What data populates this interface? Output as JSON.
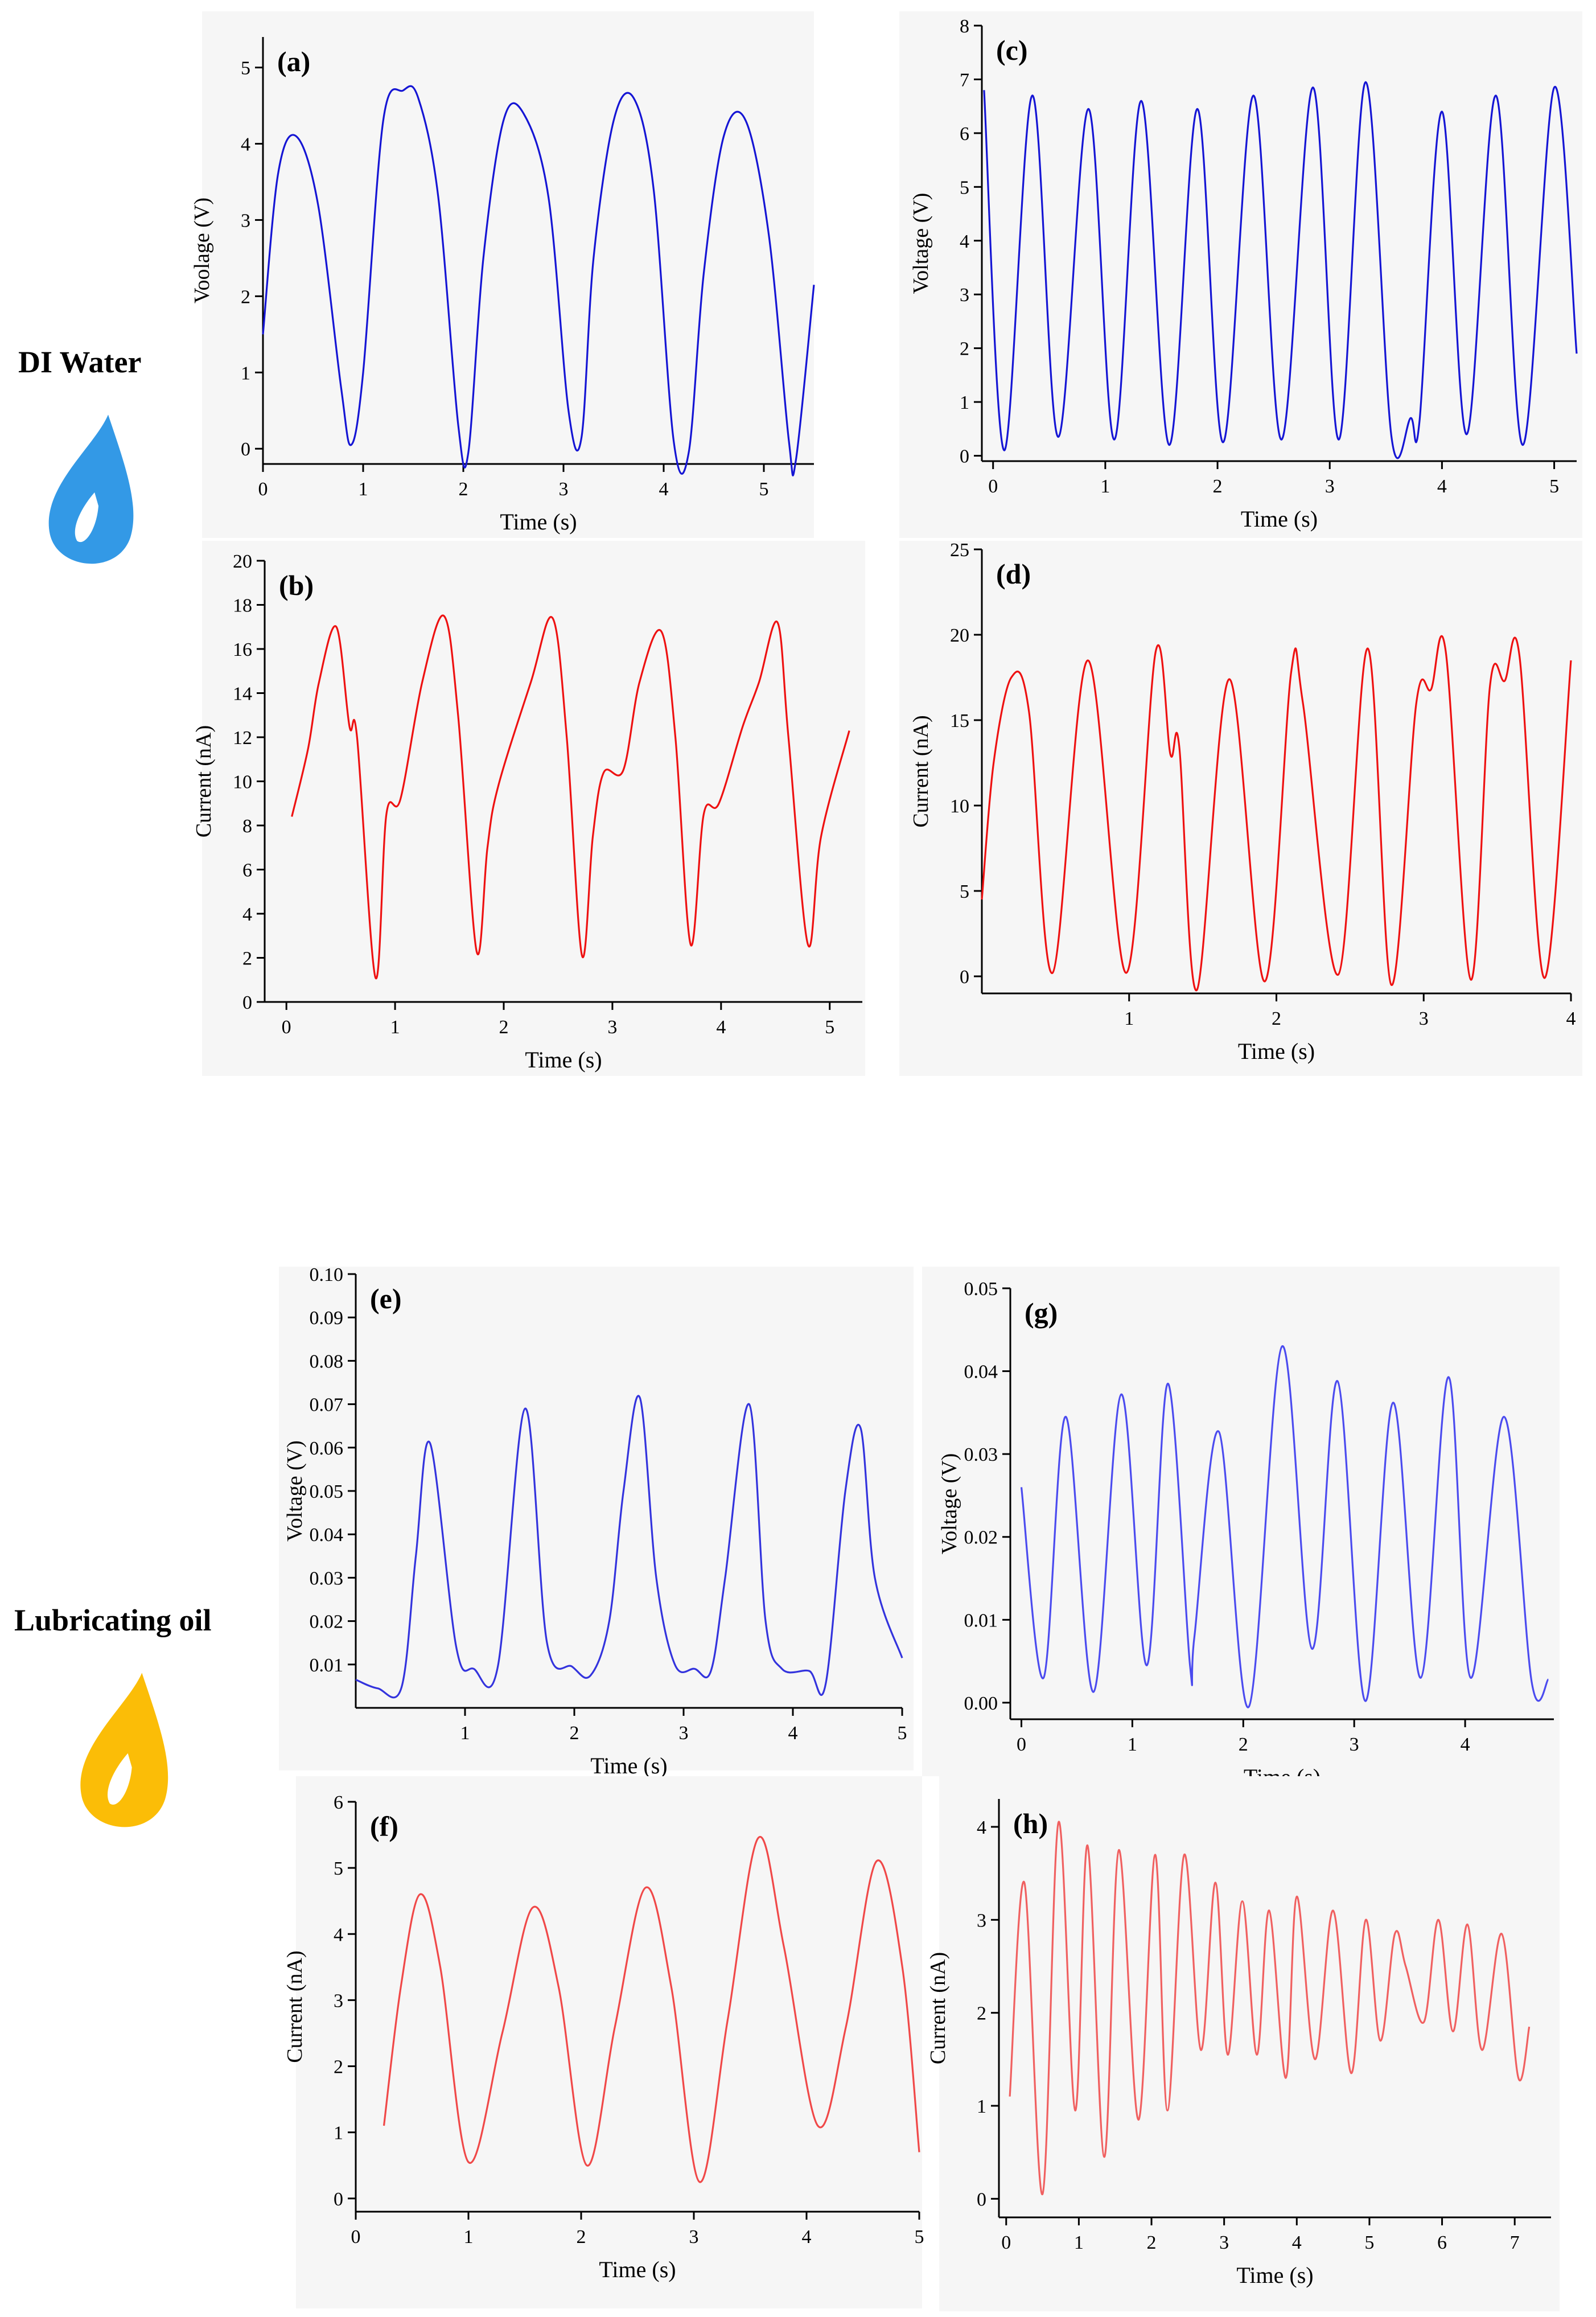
{
  "groups": {
    "di_water": {
      "label": "DI Water",
      "drop_color": "#3399e6"
    },
    "lubricating_oil": {
      "label": "Lubricating oil",
      "drop_color": "#fbbd07"
    }
  },
  "chart_data": [
    {
      "id": "a",
      "panel_label": "(a)",
      "type": "line",
      "color": "#1515d4",
      "xlabel": "Time (s)",
      "ylabel": "Voolage (V)",
      "xlim": [
        0,
        5.5
      ],
      "ylim": [
        -0.2,
        5.4
      ],
      "xticks": [
        0,
        1,
        2,
        3,
        4,
        5
      ],
      "yticks": [
        0,
        1,
        2,
        3,
        4,
        5
      ],
      "x": [
        0,
        0.15,
        0.33,
        0.55,
        0.78,
        0.88,
        1.0,
        1.2,
        1.4,
        1.55,
        1.75,
        1.95,
        2.05,
        2.2,
        2.4,
        2.6,
        2.85,
        3.05,
        3.18,
        3.3,
        3.5,
        3.7,
        3.9,
        4.1,
        4.25,
        4.4,
        4.6,
        4.82,
        5.05,
        5.25,
        5.32,
        5.5
      ],
      "y": [
        1.5,
        3.6,
        4.1,
        3.2,
        0.8,
        0.05,
        1.0,
        4.3,
        4.7,
        4.6,
        3.3,
        0.3,
        -0.05,
        2.5,
        4.3,
        4.4,
        3.3,
        0.5,
        0.15,
        2.5,
        4.3,
        4.6,
        3.4,
        0.1,
        -0.05,
        2.3,
        4.1,
        4.3,
        2.8,
        0.1,
        -0.15,
        2.15
      ]
    },
    {
      "id": "b",
      "panel_label": "(b)",
      "type": "line",
      "color": "#ee1111",
      "xlabel": "Time (s)",
      "ylabel": "Current (nA)",
      "xlim": [
        -0.2,
        5.3
      ],
      "ylim": [
        0,
        20
      ],
      "xticks": [
        0,
        1,
        2,
        3,
        4,
        5
      ],
      "yticks": [
        0,
        2,
        4,
        6,
        8,
        10,
        12,
        14,
        16,
        18,
        20
      ],
      "x": [
        0.05,
        0.2,
        0.3,
        0.46,
        0.58,
        0.65,
        0.82,
        0.92,
        1.05,
        1.25,
        1.45,
        1.58,
        1.75,
        1.85,
        1.95,
        2.25,
        2.45,
        2.58,
        2.72,
        2.82,
        2.92,
        3.1,
        3.25,
        3.45,
        3.58,
        3.72,
        3.84,
        3.98,
        4.2,
        4.35,
        4.52,
        4.62,
        4.8,
        4.92,
        5.18
      ],
      "y": [
        8.4,
        11.5,
        14.5,
        17.0,
        12.5,
        12.0,
        1.1,
        8.5,
        9.2,
        14.5,
        17.5,
        13.0,
        2.3,
        7.0,
        9.8,
        14.5,
        17.4,
        12.0,
        2.1,
        7.5,
        10.4,
        10.5,
        14.5,
        16.8,
        12.0,
        2.6,
        8.5,
        9.0,
        12.5,
        14.5,
        17.2,
        12.0,
        2.6,
        7.5,
        12.3
      ]
    },
    {
      "id": "c",
      "panel_label": "(c)",
      "type": "line",
      "color": "#1515d4",
      "xlabel": "Time (s)",
      "ylabel": "Voltage (V)",
      "xlim": [
        -0.1,
        5.2
      ],
      "ylim": [
        -0.1,
        8
      ],
      "xticks": [
        0,
        1,
        2,
        3,
        4,
        5
      ],
      "yticks": [
        0,
        1,
        2,
        3,
        4,
        5,
        6,
        7,
        8
      ],
      "x": [
        -0.08,
        0.1,
        0.35,
        0.58,
        0.85,
        1.08,
        1.32,
        1.57,
        1.82,
        2.05,
        2.32,
        2.57,
        2.85,
        3.08,
        3.32,
        3.55,
        3.72,
        3.8,
        4.0,
        4.22,
        4.48,
        4.72,
        5.0,
        5.2
      ],
      "y": [
        6.8,
        0.1,
        6.7,
        0.35,
        6.45,
        0.3,
        6.6,
        0.2,
        6.45,
        0.25,
        6.7,
        0.3,
        6.85,
        0.3,
        6.95,
        0.35,
        0.7,
        0.65,
        6.4,
        0.4,
        6.7,
        0.2,
        6.85,
        1.9
      ]
    },
    {
      "id": "d",
      "panel_label": "(d)",
      "type": "line",
      "color": "#ee1111",
      "xlabel": "Time (s)",
      "ylabel": "Current (nA)",
      "xlim": [
        0,
        4
      ],
      "ylim": [
        -1,
        25
      ],
      "xticks": [
        1,
        2,
        3,
        4
      ],
      "yticks": [
        0,
        5,
        10,
        15,
        20,
        25
      ],
      "x": [
        0,
        0.08,
        0.2,
        0.32,
        0.48,
        0.72,
        0.98,
        1.18,
        1.28,
        1.34,
        1.46,
        1.68,
        1.92,
        2.1,
        2.18,
        2.42,
        2.62,
        2.78,
        2.95,
        3.05,
        3.15,
        3.32,
        3.45,
        3.55,
        3.65,
        3.82,
        4.0
      ],
      "y": [
        4.5,
        12.5,
        17.5,
        15.5,
        0.2,
        18.5,
        0.2,
        19.0,
        13.0,
        13.5,
        -0.8,
        17.4,
        -0.3,
        17.8,
        16.0,
        0.1,
        19.2,
        -0.5,
        16.0,
        16.8,
        19.0,
        -0.2,
        17.0,
        17.3,
        18.8,
        -0.1,
        18.5
      ]
    },
    {
      "id": "e",
      "panel_label": "(e)",
      "type": "line",
      "color": "#3333dd",
      "xlabel": "Time (s)",
      "ylabel": "Voltage (V)",
      "xlim": [
        0,
        5
      ],
      "ylim": [
        0,
        0.1
      ],
      "xticks": [
        1,
        2,
        3,
        4,
        5
      ],
      "yticks": [
        0.01,
        0.02,
        0.03,
        0.04,
        0.05,
        0.06,
        0.07,
        0.08,
        0.09,
        0.1
      ],
      "x": [
        0,
        0.2,
        0.42,
        0.55,
        0.68,
        0.92,
        1.08,
        1.3,
        1.55,
        1.75,
        1.98,
        2.15,
        2.32,
        2.45,
        2.6,
        2.75,
        2.92,
        3.1,
        3.25,
        3.38,
        3.6,
        3.75,
        3.9,
        4.15,
        4.3,
        4.48,
        4.62,
        4.75,
        5.0
      ],
      "y": [
        0.0065,
        0.0045,
        0.0048,
        0.035,
        0.061,
        0.014,
        0.009,
        0.0095,
        0.069,
        0.015,
        0.0095,
        0.0075,
        0.02,
        0.05,
        0.0715,
        0.03,
        0.01,
        0.009,
        0.0085,
        0.03,
        0.07,
        0.02,
        0.009,
        0.0085,
        0.0055,
        0.05,
        0.0645,
        0.03,
        0.0115
      ]
    },
    {
      "id": "f",
      "panel_label": "(f)",
      "type": "line",
      "color": "#f04848",
      "xlabel": "Time (s)",
      "ylabel": "Current (nA)",
      "xlim": [
        0,
        5
      ],
      "ylim": [
        -0.2,
        6
      ],
      "xticks": [
        0,
        1,
        2,
        3,
        4,
        5
      ],
      "yticks": [
        0,
        1,
        2,
        3,
        4,
        5,
        6
      ],
      "x": [
        0.25,
        0.4,
        0.57,
        0.75,
        1.0,
        1.3,
        1.57,
        1.8,
        2.05,
        2.3,
        2.57,
        2.8,
        3.05,
        3.3,
        3.57,
        3.8,
        4.1,
        4.35,
        4.62,
        4.85,
        5.0
      ],
      "y": [
        1.1,
        3.2,
        4.6,
        3.5,
        0.55,
        2.5,
        4.4,
        3.2,
        0.5,
        2.6,
        4.7,
        3.2,
        0.25,
        2.7,
        5.45,
        3.8,
        1.1,
        2.6,
        5.1,
        3.5,
        0.7
      ]
    },
    {
      "id": "g",
      "panel_label": "(g)",
      "type": "line",
      "color": "#4b4bef",
      "xlabel": "Time (s)",
      "ylabel": "Voltage (V)",
      "xlim": [
        -0.1,
        4.8
      ],
      "ylim": [
        -0.002,
        0.05
      ],
      "xticks": [
        0,
        1,
        2,
        3,
        4
      ],
      "yticks": [
        0.0,
        0.01,
        0.02,
        0.03,
        0.04,
        0.05
      ],
      "x": [
        0,
        0.2,
        0.4,
        0.65,
        0.9,
        1.13,
        1.32,
        1.52,
        1.56,
        1.78,
        2.05,
        2.35,
        2.62,
        2.85,
        3.1,
        3.35,
        3.6,
        3.85,
        4.05,
        4.35,
        4.6,
        4.75
      ],
      "y": [
        0.026,
        0.003,
        0.0345,
        0.0013,
        0.0372,
        0.0045,
        0.0385,
        0.0045,
        0.008,
        0.0327,
        -0.0005,
        0.043,
        0.0065,
        0.0388,
        0.0002,
        0.0362,
        0.003,
        0.0393,
        0.003,
        0.0345,
        0.0025,
        0.0028
      ]
    },
    {
      "id": "h",
      "panel_label": "(h)",
      "type": "line",
      "color": "#f06060",
      "xlabel": "Time (s)",
      "ylabel": "Current (nA)",
      "xlim": [
        -0.1,
        7.5
      ],
      "ylim": [
        -0.2,
        4.3
      ],
      "xticks": [
        0,
        1,
        2,
        3,
        4,
        5,
        6,
        7
      ],
      "yticks": [
        0,
        1,
        2,
        3,
        4
      ],
      "x": [
        0.05,
        0.25,
        0.5,
        0.72,
        0.95,
        1.12,
        1.35,
        1.55,
        1.82,
        2.05,
        2.22,
        2.45,
        2.68,
        2.88,
        3.05,
        3.25,
        3.45,
        3.62,
        3.85,
        4.0,
        4.25,
        4.5,
        4.75,
        4.95,
        5.15,
        5.35,
        5.5,
        5.75,
        5.95,
        6.15,
        6.35,
        6.55,
        6.82,
        7.05,
        7.2
      ],
      "y": [
        1.1,
        3.4,
        0.05,
        4.05,
        0.95,
        3.8,
        0.45,
        3.75,
        0.85,
        3.7,
        0.95,
        3.7,
        1.6,
        3.4,
        1.55,
        3.2,
        1.55,
        3.1,
        1.3,
        3.25,
        1.5,
        3.1,
        1.35,
        3.0,
        1.7,
        2.85,
        2.5,
        1.9,
        3.0,
        1.8,
        2.95,
        1.6,
        2.85,
        1.3,
        1.85
      ]
    }
  ]
}
